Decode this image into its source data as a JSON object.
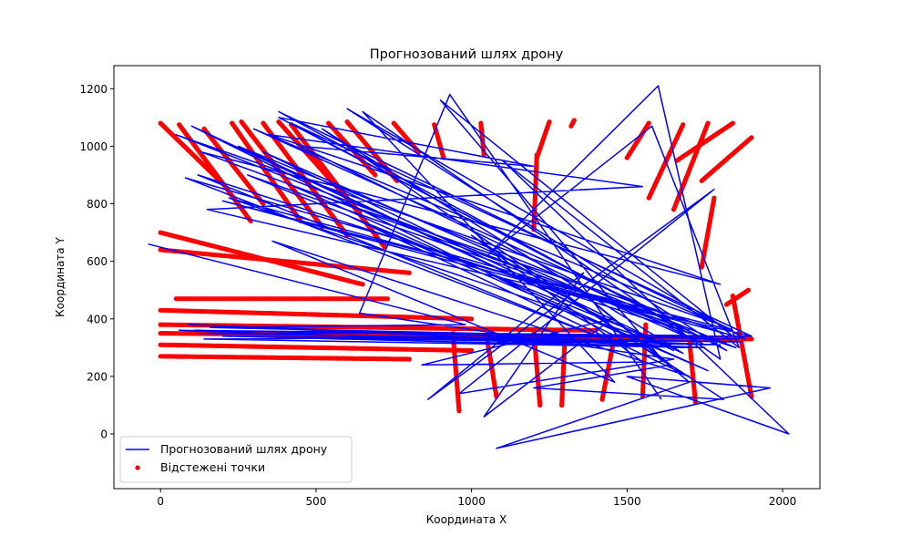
{
  "chart_data": {
    "type": "line",
    "title": "Прогнозований шлях дрону",
    "xlabel": "Координата X",
    "ylabel": "Координата Y",
    "xlim": [
      -150,
      2120
    ],
    "ylim": [
      -190,
      1280
    ],
    "xticks": [
      0,
      500,
      1000,
      1500,
      2000
    ],
    "yticks": [
      0,
      200,
      400,
      600,
      800,
      1000,
      1200
    ],
    "grid": false,
    "legend_position": "lower-left",
    "series": [
      {
        "name": "Прогнозований шлях дрону",
        "kind": "line",
        "color": "#0000ff",
        "x": [
          -40,
          980,
          160,
          1860,
          110,
          1000,
          120,
          1870,
          200,
          1800,
          90,
          1750,
          140,
          1900,
          60,
          1700,
          200,
          1500,
          100,
          1650,
          250,
          1850,
          120,
          1450,
          80,
          1650,
          300,
          1800,
          50,
          1700,
          380,
          1840,
          200,
          1600,
          420,
          1900,
          150,
          1550,
          350,
          1800,
          130,
          1700,
          280,
          1650,
          220,
          1880,
          600,
          1820,
          380,
          1200,
          450,
          1750,
          330,
          1680,
          520,
          1620,
          900,
          1840,
          430,
          1760,
          600,
          1700,
          360,
          1460,
          650,
          1800,
          1600,
          1050,
          1580,
          1860,
          1100,
          2020,
          1500,
          1960,
          1080,
          1700,
          1300,
          1640,
          1200,
          1810,
          1000,
          1550,
          840,
          1450,
          1040,
          1360,
          860,
          1780,
          960,
          1650,
          640,
          930,
          1610
        ],
        "y": [
          660,
          380,
          370,
          330,
          360,
          350,
          350,
          320,
          340,
          310,
          380,
          300,
          330,
          340,
          360,
          300,
          340,
          320,
          1070,
          290,
          1000,
          300,
          900,
          320,
          890,
          400,
          1060,
          380,
          1040,
          350,
          1120,
          360,
          810,
          410,
          1080,
          340,
          780,
          860,
          1040,
          520,
          980,
          360,
          900,
          300,
          820,
          330,
          1130,
          290,
          1100,
          930,
          1000,
          310,
          980,
          280,
          1060,
          250,
          1160,
          340,
          860,
          220,
          760,
          200,
          670,
          180,
          1120,
          260,
          1210,
          620,
          1070,
          300,
          950,
          0,
          200,
          160,
          -50,
          180,
          540,
          240,
          160,
          120,
          690,
          250,
          240,
          400,
          60,
          560,
          120,
          850,
          140,
          260,
          420,
          1180,
          120
        ]
      },
      {
        "name": "Відстежені точки",
        "kind": "scatter",
        "color": "#ff0000",
        "tracks": [
          {
            "x0": 0,
            "y0": 1080,
            "x1": 200,
            "y1": 870
          },
          {
            "x0": 60,
            "y0": 1075,
            "x1": 290,
            "y1": 740
          },
          {
            "x0": 140,
            "y0": 1060,
            "x1": 330,
            "y1": 800
          },
          {
            "x0": 230,
            "y0": 1080,
            "x1": 450,
            "y1": 740
          },
          {
            "x0": 260,
            "y0": 1085,
            "x1": 520,
            "y1": 720
          },
          {
            "x0": 330,
            "y0": 1080,
            "x1": 600,
            "y1": 690
          },
          {
            "x0": 380,
            "y0": 1085,
            "x1": 640,
            "y1": 770
          },
          {
            "x0": 420,
            "y0": 1075,
            "x1": 720,
            "y1": 650
          },
          {
            "x0": 540,
            "y0": 1080,
            "x1": 690,
            "y1": 900
          },
          {
            "x0": 600,
            "y0": 1085,
            "x1": 760,
            "y1": 880
          },
          {
            "x0": 750,
            "y0": 1080,
            "x1": 830,
            "y1": 980
          },
          {
            "x0": 880,
            "y0": 1075,
            "x1": 910,
            "y1": 960
          },
          {
            "x0": 1030,
            "y0": 1080,
            "x1": 1040,
            "y1": 970
          },
          {
            "x0": 1250,
            "y0": 1085,
            "x1": 1210,
            "y1": 960
          },
          {
            "x0": 1210,
            "y0": 970,
            "x1": 1200,
            "y1": 710
          },
          {
            "x0": 1570,
            "y0": 1080,
            "x1": 1500,
            "y1": 960
          },
          {
            "x0": 1840,
            "y0": 1080,
            "x1": 1660,
            "y1": 950
          },
          {
            "x0": 1760,
            "y0": 1080,
            "x1": 1650,
            "y1": 780
          },
          {
            "x0": 1900,
            "y0": 1030,
            "x1": 1740,
            "y1": 880
          },
          {
            "x0": 1680,
            "y0": 1075,
            "x1": 1570,
            "y1": 820
          },
          {
            "x0": 0,
            "y0": 700,
            "x1": 650,
            "y1": 520
          },
          {
            "x0": 0,
            "y0": 640,
            "x1": 800,
            "y1": 560
          },
          {
            "x0": 50,
            "y0": 470,
            "x1": 730,
            "y1": 470
          },
          {
            "x0": 0,
            "y0": 430,
            "x1": 1000,
            "y1": 400
          },
          {
            "x0": 0,
            "y0": 380,
            "x1": 1400,
            "y1": 360
          },
          {
            "x0": 0,
            "y0": 350,
            "x1": 1900,
            "y1": 330
          },
          {
            "x0": 0,
            "y0": 310,
            "x1": 1000,
            "y1": 290
          },
          {
            "x0": 0,
            "y0": 270,
            "x1": 800,
            "y1": 260
          },
          {
            "x0": 940,
            "y0": 350,
            "x1": 960,
            "y1": 80
          },
          {
            "x0": 1050,
            "y0": 330,
            "x1": 1080,
            "y1": 130
          },
          {
            "x0": 1200,
            "y0": 360,
            "x1": 1220,
            "y1": 100
          },
          {
            "x0": 1300,
            "y0": 330,
            "x1": 1290,
            "y1": 100
          },
          {
            "x0": 1460,
            "y0": 340,
            "x1": 1420,
            "y1": 120
          },
          {
            "x0": 1560,
            "y0": 380,
            "x1": 1550,
            "y1": 130
          },
          {
            "x0": 1700,
            "y0": 330,
            "x1": 1720,
            "y1": 110
          },
          {
            "x0": 1840,
            "y0": 480,
            "x1": 1900,
            "y1": 130
          },
          {
            "x0": 1890,
            "y0": 500,
            "x1": 1820,
            "y1": 450
          },
          {
            "x0": 1780,
            "y0": 820,
            "x1": 1740,
            "y1": 580
          },
          {
            "x0": 1330,
            "y0": 1090,
            "x1": 1320,
            "y1": 1070
          }
        ]
      }
    ]
  }
}
